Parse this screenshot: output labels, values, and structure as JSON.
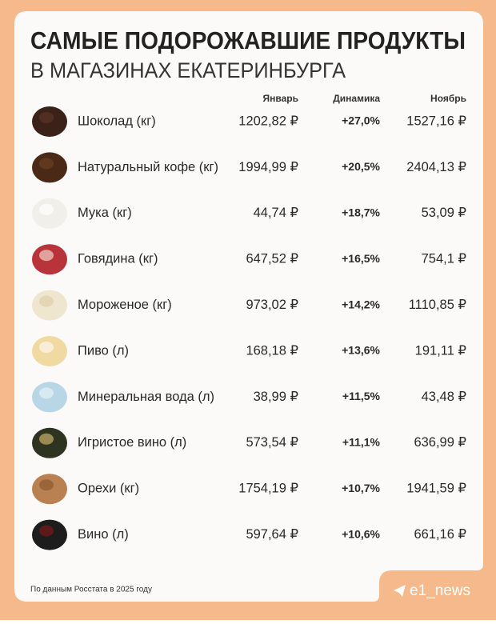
{
  "header": {
    "title": "САМЫЕ ПОДОРОЖАВШИЕ ПРОДУКТЫ",
    "subtitle": "В МАГАЗИНАХ ЕКАТЕРИНБУРГА"
  },
  "table": {
    "columns": [
      "Январь",
      "Динамика",
      "Ноябрь"
    ],
    "rows": [
      [
        "Шоколад (кг)",
        "1202,82 ₽",
        "+27,0%",
        "1527,16 ₽"
      ],
      [
        "Натуральный кофе (кг)",
        "1994,99 ₽",
        "+20,5%",
        "2404,13 ₽"
      ],
      [
        "Мука (кг)",
        "44,74 ₽",
        "+18,7%",
        "53,09 ₽"
      ],
      [
        "Говядина (кг)",
        "647,52 ₽",
        "+16,5%",
        "754,1 ₽"
      ],
      [
        "Мороженое (кг)",
        "973,02 ₽",
        "+14,2%",
        "1110,85 ₽"
      ],
      [
        "Пиво (л)",
        "168,18 ₽",
        "+13,6%",
        "191,11 ₽"
      ],
      [
        "Минеральная вода (л)",
        "38,99 ₽",
        "+11,5%",
        "43,48 ₽"
      ],
      [
        "Игристое вино (л)",
        "573,54 ₽",
        "+11,1%",
        "636,99 ₽"
      ],
      [
        "Орехи (кг)",
        "1754,19 ₽",
        "+10,7%",
        "1941,59 ₽"
      ],
      [
        "Вино (л)",
        "597,64 ₽",
        "+10,6%",
        "661,16 ₽"
      ]
    ]
  },
  "footer": {
    "source": "По данным Росстата в 2025 году",
    "handle": "e1_news"
  }
}
